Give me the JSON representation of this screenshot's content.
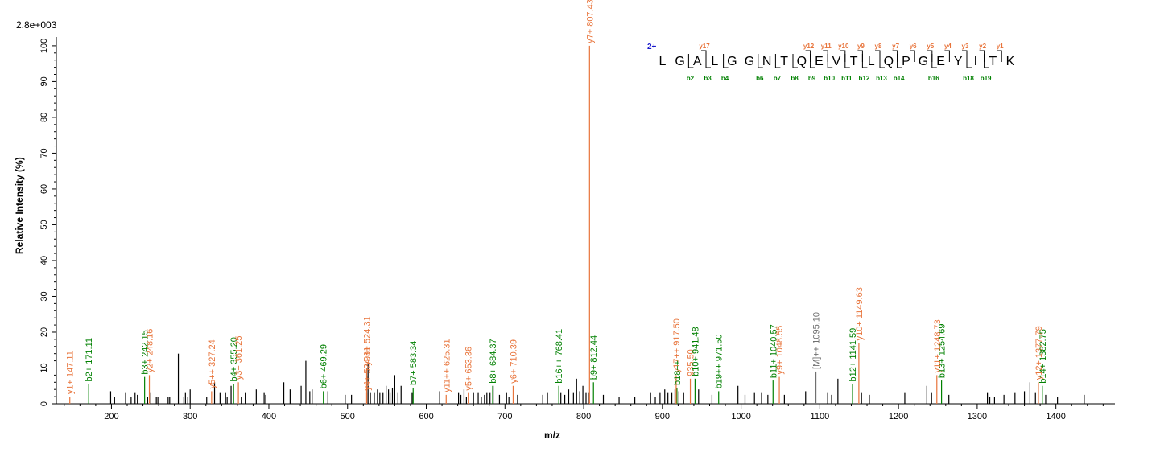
{
  "chart_data": {
    "type": "bar",
    "title": "",
    "scale_label": "2.8e+003",
    "xlabel": "m/z",
    "ylabel": "Relative   Intensity (%)",
    "xlim": [
      130,
      1475
    ],
    "ylim": [
      0,
      102
    ],
    "x_ticks": [
      200,
      300,
      400,
      500,
      600,
      700,
      800,
      900,
      1000,
      1100,
      1200,
      1300,
      1400
    ],
    "y_ticks": [
      0,
      10,
      20,
      30,
      40,
      50,
      60,
      70,
      80,
      90,
      100
    ],
    "colors": {
      "b": "#008000",
      "y": "#e8743b",
      "other": "#707070",
      "unassigned": "#000000",
      "charge": "#1a1acc"
    },
    "series": [
      {
        "name": "unassigned",
        "peaks": [
          [
            199,
            3.5
          ],
          [
            204,
            2
          ],
          [
            218,
            3
          ],
          [
            225,
            2
          ],
          [
            230,
            3
          ],
          [
            233,
            2.5
          ],
          [
            246,
            2
          ],
          [
            250,
            3
          ],
          [
            257,
            2
          ],
          [
            259,
            2
          ],
          [
            272,
            2
          ],
          [
            274,
            2
          ],
          [
            285,
            14
          ],
          [
            292,
            2
          ],
          [
            294,
            3
          ],
          [
            297,
            2
          ],
          [
            300,
            4
          ],
          [
            321,
            2
          ],
          [
            331,
            6
          ],
          [
            338,
            3
          ],
          [
            345,
            3
          ],
          [
            347,
            2
          ],
          [
            352,
            5
          ],
          [
            365,
            2
          ],
          [
            370,
            3
          ],
          [
            384,
            4
          ],
          [
            394,
            3
          ],
          [
            396,
            2.5
          ],
          [
            419,
            6
          ],
          [
            427,
            4
          ],
          [
            441,
            5
          ],
          [
            447,
            12
          ],
          [
            452,
            3.5
          ],
          [
            455,
            4
          ],
          [
            475,
            3.5
          ],
          [
            497,
            2.5
          ],
          [
            505,
            2.5
          ],
          [
            526,
            11
          ],
          [
            529,
            3
          ],
          [
            534,
            3
          ],
          [
            538,
            4
          ],
          [
            541,
            3
          ],
          [
            545,
            3
          ],
          [
            549,
            5
          ],
          [
            552,
            4
          ],
          [
            554,
            3
          ],
          [
            557,
            4.5
          ],
          [
            560,
            8
          ],
          [
            564,
            3
          ],
          [
            568,
            5
          ],
          [
            582,
            3
          ],
          [
            617,
            3.5
          ],
          [
            641,
            3
          ],
          [
            644,
            2.5
          ],
          [
            648,
            4
          ],
          [
            651,
            2
          ],
          [
            660,
            3
          ],
          [
            666,
            3
          ],
          [
            670,
            2
          ],
          [
            674,
            2.5
          ],
          [
            677,
            3
          ],
          [
            681,
            3
          ],
          [
            685,
            5
          ],
          [
            693,
            2.5
          ],
          [
            702,
            3
          ],
          [
            705,
            2
          ],
          [
            716,
            2.5
          ],
          [
            748,
            2.5
          ],
          [
            754,
            3
          ],
          [
            771,
            3
          ],
          [
            776,
            2.5
          ],
          [
            781,
            4
          ],
          [
            787,
            3
          ],
          [
            791,
            7
          ],
          [
            795,
            3.5
          ],
          [
            799,
            5
          ],
          [
            803,
            3
          ],
          [
            807,
            3
          ],
          [
            825,
            2.5
          ],
          [
            845,
            2
          ],
          [
            865,
            2
          ],
          [
            885,
            3
          ],
          [
            891,
            2
          ],
          [
            897,
            3
          ],
          [
            903,
            4
          ],
          [
            907,
            3
          ],
          [
            912,
            3
          ],
          [
            916,
            4
          ],
          [
            921,
            3.5
          ],
          [
            927,
            3
          ],
          [
            946,
            4
          ],
          [
            963,
            2.5
          ],
          [
            996,
            5
          ],
          [
            1005,
            2.5
          ],
          [
            1017,
            3
          ],
          [
            1026,
            3
          ],
          [
            1034,
            2.5
          ],
          [
            1055,
            2.5
          ],
          [
            1082,
            3.5
          ],
          [
            1110,
            3
          ],
          [
            1115,
            2.5
          ],
          [
            1123,
            7
          ],
          [
            1153,
            3
          ],
          [
            1163,
            2.5
          ],
          [
            1208,
            3
          ],
          [
            1236,
            5
          ],
          [
            1242,
            3
          ],
          [
            1264,
            2.5
          ],
          [
            1313,
            3
          ],
          [
            1316,
            2
          ],
          [
            1322,
            2
          ],
          [
            1334,
            2.5
          ],
          [
            1348,
            3
          ],
          [
            1360,
            3.5
          ],
          [
            1367,
            6
          ],
          [
            1374,
            3
          ],
          [
            1387,
            2.5
          ],
          [
            1402,
            2
          ],
          [
            1436,
            2.5
          ]
        ]
      },
      {
        "name": "b",
        "peaks": [
          [
            171.11,
            5.5
          ],
          [
            242.15,
            7.5
          ],
          [
            355.2,
            5.5
          ],
          [
            469.29,
            3.5
          ],
          [
            583.34,
            4.5
          ],
          [
            684.37,
            5
          ],
          [
            768.41,
            5
          ],
          [
            812.44,
            6
          ],
          [
            918.5,
            4.5
          ],
          [
            941.48,
            7
          ],
          [
            971.5,
            3.5
          ],
          [
            1040.57,
            6.5
          ],
          [
            1141.59,
            5.5
          ],
          [
            1254.69,
            6.5
          ],
          [
            1382.75,
            5
          ]
        ]
      },
      {
        "name": "y",
        "peaks": [
          [
            147.11,
            2
          ],
          [
            248.16,
            8
          ],
          [
            327.24,
            3.5
          ],
          [
            361.25,
            6
          ],
          [
            524.31,
            3
          ],
          [
            524.31,
            10
          ],
          [
            625.31,
            2.5
          ],
          [
            653.36,
            3
          ],
          [
            710.39,
            5
          ],
          [
            807.43,
            100
          ],
          [
            917.5,
            8
          ],
          [
            935.5,
            7
          ],
          [
            1048.55,
            7.5
          ],
          [
            1149.63,
            17
          ],
          [
            1248.73,
            8
          ],
          [
            1377.79,
            6
          ]
        ]
      },
      {
        "name": "other",
        "peaks": [
          [
            1095.1,
            9
          ]
        ]
      }
    ],
    "labels": [
      {
        "text": "y1+ 147.11",
        "x": 147.11,
        "y": 2,
        "kind": "y"
      },
      {
        "text": "b2+ 171.11",
        "x": 171.11,
        "y": 5.5,
        "kind": "b"
      },
      {
        "text": "b3+ 242.15",
        "x": 242.15,
        "y": 7.5,
        "kind": "b"
      },
      {
        "text": "y2+ 248.16",
        "x": 248.16,
        "y": 8,
        "kind": "y"
      },
      {
        "text": "y5++ 327.24",
        "x": 327.24,
        "y": 3.5,
        "kind": "y"
      },
      {
        "text": "b4+ 355.20",
        "x": 355.2,
        "y": 5.5,
        "kind": "b"
      },
      {
        "text": "y3+ 361.25",
        "x": 361.25,
        "y": 6,
        "kind": "y"
      },
      {
        "text": "b6+ 469.29",
        "x": 469.29,
        "y": 3.5,
        "kind": "b"
      },
      {
        "text": "y4+ 524.31",
        "x": 524.31,
        "y": 3,
        "kind": "y"
      },
      {
        "text": "y9++ 524.31",
        "x": 524.31,
        "y": 10,
        "kind": "y"
      },
      {
        "text": "b7+ 583.34",
        "x": 583.34,
        "y": 4.5,
        "kind": "b"
      },
      {
        "text": "y11++ 625.31",
        "x": 625.31,
        "y": 2.5,
        "kind": "y"
      },
      {
        "text": "y5+ 653.36",
        "x": 653.36,
        "y": 3,
        "kind": "y"
      },
      {
        "text": "b8+ 684.37",
        "x": 684.37,
        "y": 5,
        "kind": "b"
      },
      {
        "text": "y6+ 710.39",
        "x": 710.39,
        "y": 5,
        "kind": "y"
      },
      {
        "text": "b16++ 768.41",
        "x": 768.41,
        "y": 5,
        "kind": "b"
      },
      {
        "text": "y7+ 807.43",
        "x": 807.43,
        "y": 100,
        "kind": "y"
      },
      {
        "text": "b9+ 812.44",
        "x": 812.44,
        "y": 6,
        "kind": "b"
      },
      {
        "text": "y17++ 917.50",
        "x": 917.5,
        "y": 8,
        "kind": "y"
      },
      {
        "text": "b18++",
        "x": 918.5,
        "y": 4.5,
        "kind": "b"
      },
      {
        "text": "935.50",
        "x": 935.5,
        "y": 7,
        "kind": "y"
      },
      {
        "text": "b10+ 941.48",
        "x": 941.48,
        "y": 7,
        "kind": "b"
      },
      {
        "text": "b19++ 971.50",
        "x": 971.5,
        "y": 3.5,
        "kind": "b"
      },
      {
        "text": "b11+ 1040.57",
        "x": 1040.57,
        "y": 6.5,
        "kind": "b"
      },
      {
        "text": "y9+ 1048.55",
        "x": 1048.55,
        "y": 7.5,
        "kind": "y"
      },
      {
        "text": "[M]++ 1095.10",
        "x": 1095.1,
        "y": 9,
        "kind": "other"
      },
      {
        "text": "b12+ 1141.59",
        "x": 1141.59,
        "y": 5.5,
        "kind": "b"
      },
      {
        "text": "y10+ 1149.63",
        "x": 1149.63,
        "y": 17,
        "kind": "y"
      },
      {
        "text": "y11+ 1248.73",
        "x": 1248.73,
        "y": 8,
        "kind": "y"
      },
      {
        "text": "b13+ 1254.69",
        "x": 1254.69,
        "y": 6.5,
        "kind": "b"
      },
      {
        "text": "y12+ 1377.79",
        "x": 1377.79,
        "y": 6,
        "kind": "y"
      },
      {
        "text": "b14+ 1382.75",
        "x": 1382.75,
        "y": 5,
        "kind": "b"
      }
    ],
    "sequence": {
      "charge": "2+",
      "residues": [
        "L",
        "G",
        "A",
        "L",
        "G",
        "G",
        "N",
        "T",
        "Q",
        "E",
        "V",
        "T",
        "L",
        "Q",
        "P",
        "G",
        "E",
        "Y",
        "I",
        "T",
        "K"
      ],
      "y_ions": [
        {
          "after": 3,
          "label": "y17"
        },
        {
          "after": 9,
          "label": "y12"
        },
        {
          "after": 10,
          "label": "y11"
        },
        {
          "after": 11,
          "label": "y10"
        },
        {
          "after": 12,
          "label": "y9"
        },
        {
          "after": 13,
          "label": "y8"
        },
        {
          "after": 14,
          "label": "y7"
        },
        {
          "after": 15,
          "label": "y6"
        },
        {
          "after": 16,
          "label": "y5"
        },
        {
          "after": 17,
          "label": "y4"
        },
        {
          "after": 18,
          "label": "y3"
        },
        {
          "after": 19,
          "label": "y2"
        },
        {
          "after": 20,
          "label": "y1"
        }
      ],
      "b_ions": [
        {
          "after": 2,
          "label": "b2"
        },
        {
          "after": 3,
          "label": "b3"
        },
        {
          "after": 4,
          "label": "b4"
        },
        {
          "after": 6,
          "label": "b6"
        },
        {
          "after": 7,
          "label": "b7"
        },
        {
          "after": 8,
          "label": "b8"
        },
        {
          "after": 9,
          "label": "b9"
        },
        {
          "after": 10,
          "label": "b10"
        },
        {
          "after": 11,
          "label": "b11"
        },
        {
          "after": 12,
          "label": "b12"
        },
        {
          "after": 13,
          "label": "b13"
        },
        {
          "after": 14,
          "label": "b14"
        },
        {
          "after": 16,
          "label": "b16"
        },
        {
          "after": 18,
          "label": "b18"
        },
        {
          "after": 19,
          "label": "b19"
        }
      ]
    }
  }
}
